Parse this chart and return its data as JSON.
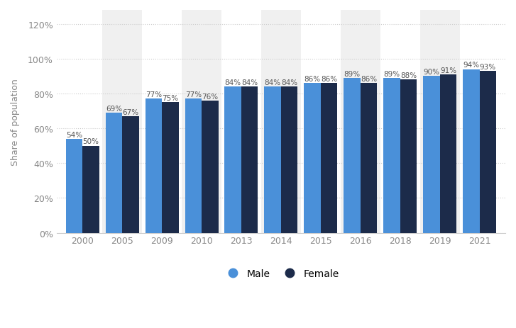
{
  "years": [
    "2000",
    "2005",
    "2009",
    "2010",
    "2013",
    "2014",
    "2015",
    "2016",
    "2018",
    "2019",
    "2021"
  ],
  "male": [
    54,
    69,
    77,
    77,
    84,
    84,
    86,
    89,
    89,
    90,
    94
  ],
  "female": [
    50,
    67,
    75,
    76,
    84,
    84,
    86,
    86,
    88,
    91,
    93
  ],
  "male_color": "#4A90D9",
  "female_color": "#1C2B4A",
  "bg_color": "#ffffff",
  "plot_bg_color": "#ffffff",
  "stripe_color": "#f0f0f0",
  "ylabel": "Share of population",
  "yticks": [
    0,
    20,
    40,
    60,
    80,
    100,
    120
  ],
  "ylim": [
    0,
    128
  ],
  "bar_width": 0.42,
  "label_fontsize": 7.5,
  "tick_fontsize": 9,
  "legend_fontsize": 10,
  "grid_color": "#cccccc",
  "stripe_indices": [
    1,
    3,
    5,
    7,
    9
  ]
}
